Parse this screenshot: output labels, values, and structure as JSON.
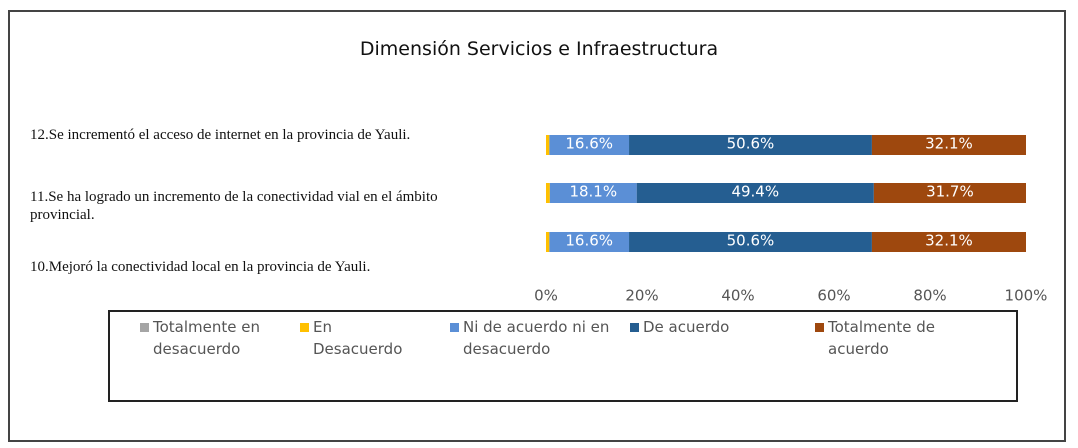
{
  "chart_data": {
    "type": "stacked_bar_horizontal",
    "title": "Dimensión Servicios e Infraestructura",
    "categories": [
      "12.Se incrementó el acceso de internet en la provincia de Yauli.",
      "11.Se ha logrado un incremento de la conectividad vial en el ámbito provincial.",
      "10.Mejoró la conectividad local en la provincia de Yauli."
    ],
    "series": [
      {
        "name": "Totalmente en desacuerdo",
        "color": "#a5a5a5",
        "values": [
          0,
          0,
          0
        ]
      },
      {
        "name": "En Desacuerdo",
        "color": "#ffc000",
        "values": [
          0.7,
          0.8,
          0.7
        ]
      },
      {
        "name": "Ni de acuerdo ni en desacuerdo",
        "color": "#5b8fd6",
        "values": [
          16.6,
          18.1,
          16.6
        ],
        "value_labels": [
          "16.6%",
          "18.1%",
          "16.6%"
        ]
      },
      {
        "name": "De acuerdo",
        "color": "#255e91",
        "values": [
          50.6,
          49.4,
          50.6
        ],
        "value_labels": [
          "50.6%",
          "49.4%",
          "50.6%"
        ]
      },
      {
        "name": "Totalmente de acuerdo",
        "color": "#9e480e",
        "values": [
          32.1,
          31.7,
          32.1
        ],
        "value_labels": [
          "32.1%",
          "31.7%",
          "32.1%"
        ]
      }
    ],
    "xlim": [
      0,
      100
    ],
    "xticks": [
      {
        "value": 0,
        "label": "0%"
      },
      {
        "value": 20,
        "label": "20%"
      },
      {
        "value": 40,
        "label": "40%"
      },
      {
        "value": 60,
        "label": "60%"
      },
      {
        "value": 80,
        "label": "80%"
      },
      {
        "value": 100,
        "label": "100%"
      }
    ],
    "legend": "bottom"
  }
}
